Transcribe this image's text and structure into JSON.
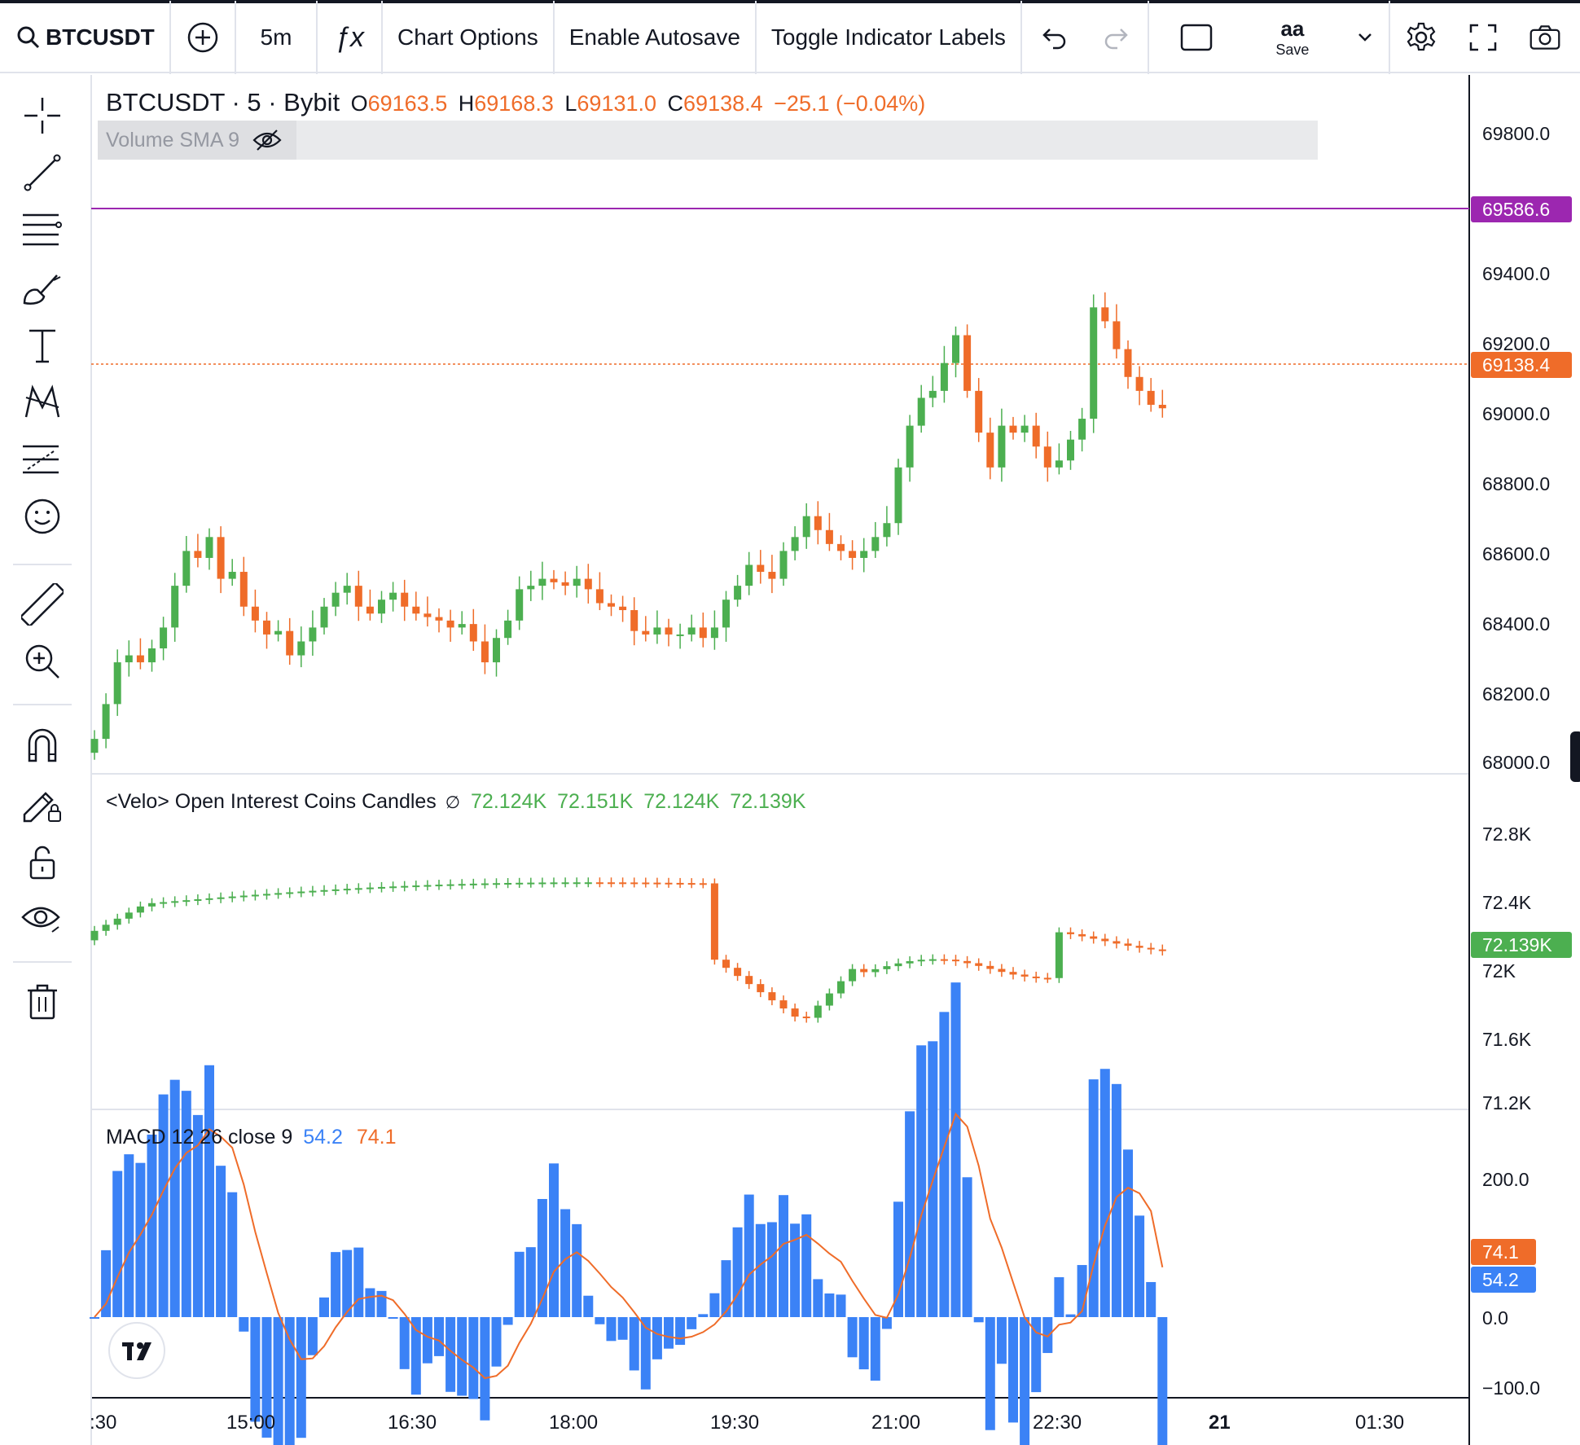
{
  "toolbar": {
    "symbol": "BTCUSDT",
    "interval": "5m",
    "fx": "ƒx",
    "chart_options": "Chart Options",
    "enable_autosave": "Enable Autosave",
    "toggle_indicator_labels": "Toggle Indicator Labels",
    "layout_name": "aa",
    "save": "Save"
  },
  "legend": {
    "title": "BTCUSDT · 5 · Bybit",
    "o_label": "O",
    "o": "69163.5",
    "h_label": "H",
    "h": "69168.3",
    "l_label": "L",
    "l": "69131.0",
    "c_label": "C",
    "c": "69138.4",
    "change": "−25.1 (−0.04%)",
    "volume": "Volume SMA 9"
  },
  "oi_legend": {
    "title": "<Velo> Open Interest Coins Candles",
    "glyph": "∅",
    "o": "72.124K",
    "h": "72.151K",
    "l": "72.124K",
    "c": "72.139K"
  },
  "macd_legend": {
    "title": "MACD 12 26 close 9",
    "macd": "54.2",
    "signal": "74.1"
  },
  "price_axis": [
    "69800.0",
    "69400.0",
    "69200.0",
    "69000.0",
    "68800.0",
    "68600.0",
    "68400.0",
    "68200.0",
    "68000.0"
  ],
  "price_tags": {
    "alert": "69586.6",
    "last": "69138.4"
  },
  "oi_axis": [
    "72.8K",
    "72.4K",
    "72K",
    "71.6K",
    "71.2K"
  ],
  "oi_tag": "72.139K",
  "macd_axis": [
    "200.0",
    "0.0",
    "−100.0"
  ],
  "macd_tags": {
    "signal": "74.1",
    "macd": "54.2"
  },
  "time_axis": [
    ":30",
    "15:00",
    "16:30",
    "18:00",
    "19:30",
    "21:00",
    "22:30",
    "21",
    "01:30"
  ],
  "colors": {
    "up": "#4caf50",
    "down": "#ef6c29",
    "macd": "#3b82f6",
    "signal": "#ef6c29",
    "alert": "#9c27b0"
  },
  "chart_data": [
    {
      "type": "candlestick",
      "series": [
        {
          "name": "BTCUSDT · 5 · Bybit",
          "close": [
            68180,
            68280,
            68400,
            68420,
            68400,
            68440,
            68500,
            68620,
            68720,
            68700,
            68760,
            68640,
            68660,
            68560,
            68520,
            68480,
            68490,
            68420,
            68460,
            68500,
            68560,
            68600,
            68620,
            68560,
            68540,
            68580,
            68600,
            68560,
            68540,
            68530,
            68520,
            68500,
            68510,
            68460,
            68400,
            68470,
            68520,
            68610,
            68620,
            68640,
            68630,
            68620,
            68640,
            68610,
            68570,
            68560,
            68550,
            68490,
            68480,
            68500,
            68480,
            68480,
            68500,
            68470,
            68500,
            68580,
            68620,
            68680,
            68660,
            68640,
            68720,
            68760,
            68820,
            68780,
            68740,
            68720,
            68700,
            68720,
            68760,
            68800,
            68960,
            69080,
            69160,
            69180,
            69260,
            69340,
            69180,
            69060,
            68960,
            69080,
            69060,
            69080,
            69020,
            68960,
            68980,
            69040,
            69100,
            69420,
            69380,
            69300,
            69220,
            69180,
            69140,
            69130
          ]
        }
      ],
      "ylim": [
        68000,
        69800
      ]
    },
    {
      "type": "candlestick",
      "series": [
        {
          "name": "<Velo> Open Interest Coins Candles"
        }
      ],
      "ylim": [
        71200,
        72800
      ]
    },
    {
      "type": "bar",
      "series": [
        {
          "name": "MACD 12 26 close 9"
        }
      ],
      "ylim": [
        -100,
        200
      ]
    }
  ]
}
